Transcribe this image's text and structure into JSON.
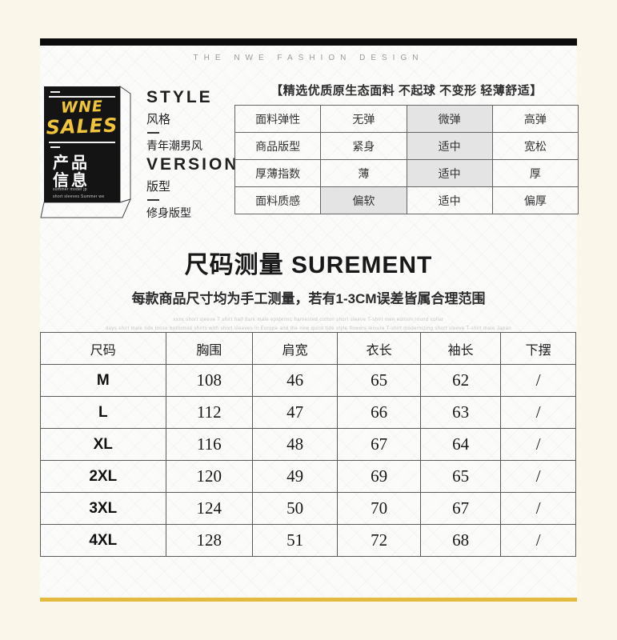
{
  "colors": {
    "page_cream": "#faf7ea",
    "accent_gold": "#e2ba3e",
    "brand_yellow": "#f0c53a",
    "card_black": "#141414",
    "highlight_gray": "#e4e4e4"
  },
  "brand": {
    "header_text": "THE NWE FASHION DESIGN"
  },
  "product_card": {
    "brand_line1": "WNE",
    "brand_line2": "SALES",
    "title_line1": "产品",
    "title_line2": "信息",
    "subtext_line1": "summer model jp",
    "subtext_line2": "short sleeves Summer we"
  },
  "style_block": {
    "title": "STYLE",
    "label": "风格",
    "value": "青年潮男风"
  },
  "version_block": {
    "title": "VERSION",
    "label": "版型",
    "value": "修身版型"
  },
  "fabric": {
    "title": "【精选优质原生态面料 不起球 不变形 轻薄舒适】",
    "rows": [
      {
        "label": "面料弹性",
        "options": [
          "无弹",
          "微弹",
          "高弹"
        ],
        "selected": 1
      },
      {
        "label": "商品版型",
        "options": [
          "紧身",
          "适中",
          "宽松"
        ],
        "selected": 1
      },
      {
        "label": "厚薄指数",
        "options": [
          "薄",
          "适中",
          "厚"
        ],
        "selected": 1
      },
      {
        "label": "面料质感",
        "options": [
          "偏软",
          "适中",
          "偏厚"
        ],
        "selected": 0
      }
    ]
  },
  "measure": {
    "title_cn": "尺码测量",
    "title_en": "SUREMENT",
    "subtitle": "每款商品尺寸均为手工测量，若有1-3CM误差皆属合理范围",
    "fineprint1": "xxxx short sleeve T shirt half dark male epidemic harvested cotton short sleeve T-shirt men edition round collar",
    "fineprint2": "days shirt male tide loose bottomed shirts with short sleeves in Europe and the new quick tide style flowers leisure T-shirt modernizing short sleeve T-shirt male Japan"
  },
  "size_table": {
    "headers": [
      "尺码",
      "胸围",
      "肩宽",
      "衣长",
      "袖长",
      "下摆"
    ],
    "rows": [
      [
        "M",
        "108",
        "46",
        "65",
        "62",
        "/"
      ],
      [
        "L",
        "112",
        "47",
        "66",
        "63",
        "/"
      ],
      [
        "XL",
        "116",
        "48",
        "67",
        "64",
        "/"
      ],
      [
        "2XL",
        "120",
        "49",
        "69",
        "65",
        "/"
      ],
      [
        "3XL",
        "124",
        "50",
        "70",
        "67",
        "/"
      ],
      [
        "4XL",
        "128",
        "51",
        "72",
        "68",
        "/"
      ]
    ]
  }
}
